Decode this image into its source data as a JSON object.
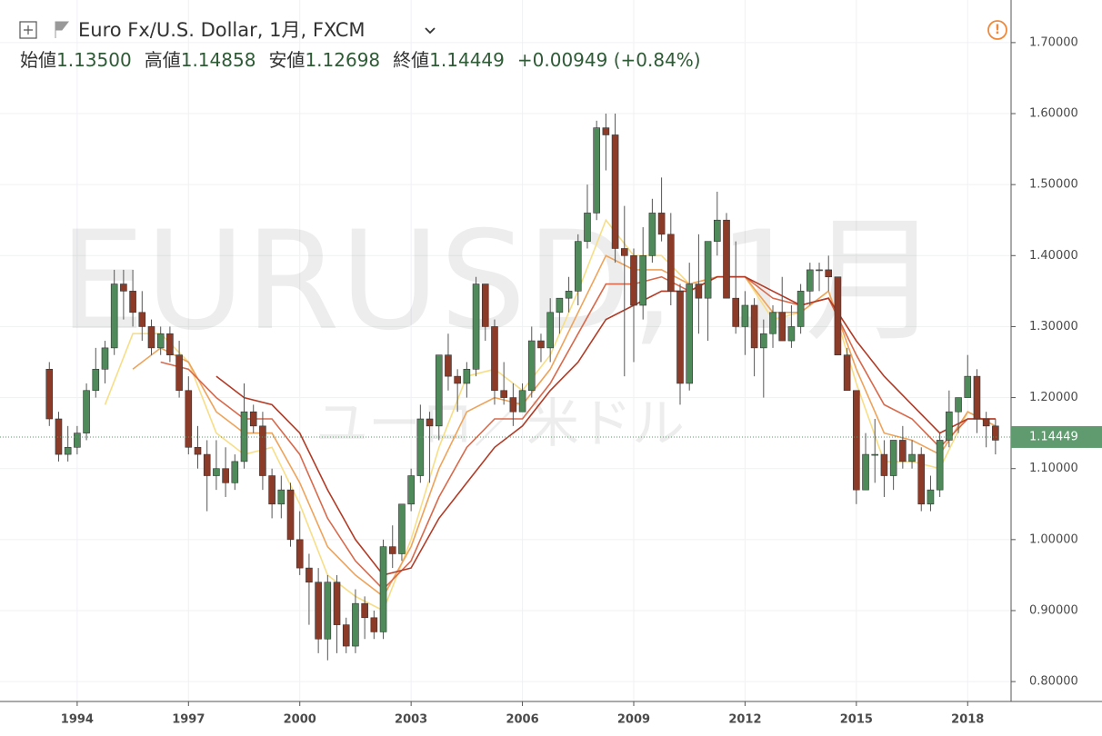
{
  "chart_data": {
    "type": "candlestick",
    "title": "Euro Fx/U.S. Dollar, 1月, FXCM",
    "watermark": "EURUSD, 1月",
    "watermark_sub": "ユーロ／米ドル",
    "ohlc_summary": [
      {
        "label": "始値",
        "value": "1.13500"
      },
      {
        "label": "高値",
        "value": "1.14858"
      },
      {
        "label": "安値",
        "value": "1.12698"
      },
      {
        "label": "終値",
        "value": "1.14449"
      }
    ],
    "change": "+0.00949 (+0.84%)",
    "last_price": {
      "value": 1.14449,
      "label": "1.14449"
    },
    "up_color": "#4f8a5b",
    "down_color": "#8c3b29",
    "x": [
      1993.25,
      1993.5,
      1993.75,
      1994,
      1994.25,
      1994.5,
      1994.75,
      1995,
      1995.25,
      1995.5,
      1995.75,
      1996,
      1996.25,
      1996.5,
      1996.75,
      1997,
      1997.25,
      1997.5,
      1997.75,
      1998,
      1998.25,
      1998.5,
      1998.75,
      1999,
      1999.25,
      1999.5,
      1999.75,
      2000,
      2000.25,
      2000.5,
      2000.75,
      2001,
      2001.25,
      2001.5,
      2001.75,
      2002,
      2002.25,
      2002.5,
      2002.75,
      2003,
      2003.25,
      2003.5,
      2003.75,
      2004,
      2004.25,
      2004.5,
      2004.75,
      2005,
      2005.25,
      2005.5,
      2005.75,
      2006,
      2006.25,
      2006.5,
      2006.75,
      2007,
      2007.25,
      2007.5,
      2007.75,
      2008,
      2008.25,
      2008.5,
      2008.75,
      2009,
      2009.25,
      2009.5,
      2009.75,
      2010,
      2010.25,
      2010.5,
      2010.75,
      2011,
      2011.25,
      2011.5,
      2011.75,
      2012,
      2012.25,
      2012.5,
      2012.75,
      2013,
      2013.25,
      2013.5,
      2013.75,
      2014,
      2014.25,
      2014.5,
      2014.75,
      2015,
      2015.25,
      2015.5,
      2015.75,
      2016,
      2016.25,
      2016.5,
      2016.75,
      2017,
      2017.25,
      2017.5,
      2017.75,
      2018,
      2018.25,
      2018.5,
      2018.75
    ],
    "open": [
      1.24,
      1.17,
      1.12,
      1.13,
      1.15,
      1.21,
      1.24,
      1.27,
      1.36,
      1.35,
      1.32,
      1.3,
      1.27,
      1.29,
      1.26,
      1.21,
      1.13,
      1.12,
      1.09,
      1.1,
      1.08,
      1.11,
      1.18,
      1.16,
      1.09,
      1.05,
      1.07,
      1.0,
      0.96,
      0.94,
      0.86,
      0.94,
      0.88,
      0.85,
      0.91,
      0.89,
      0.87,
      0.99,
      0.98,
      1.05,
      1.09,
      1.17,
      1.16,
      1.26,
      1.23,
      1.22,
      1.24,
      1.36,
      1.3,
      1.21,
      1.2,
      1.18,
      1.21,
      1.28,
      1.27,
      1.32,
      1.34,
      1.35,
      1.42,
      1.46,
      1.58,
      1.57,
      1.41,
      1.4,
      1.33,
      1.4,
      1.46,
      1.43,
      1.35,
      1.22,
      1.36,
      1.34,
      1.42,
      1.45,
      1.34,
      1.3,
      1.33,
      1.27,
      1.29,
      1.32,
      1.28,
      1.3,
      1.35,
      1.38,
      1.38,
      1.37,
      1.26,
      1.21,
      1.07,
      1.12,
      1.12,
      1.09,
      1.14,
      1.11,
      1.12,
      1.05,
      1.07,
      1.14,
      1.18,
      1.2,
      1.23,
      1.17,
      1.16
    ],
    "high": [
      1.25,
      1.18,
      1.16,
      1.16,
      1.22,
      1.27,
      1.28,
      1.38,
      1.38,
      1.38,
      1.35,
      1.31,
      1.3,
      1.3,
      1.28,
      1.23,
      1.16,
      1.14,
      1.14,
      1.13,
      1.12,
      1.22,
      1.19,
      1.18,
      1.1,
      1.09,
      1.08,
      1.04,
      0.98,
      0.96,
      0.95,
      0.95,
      0.89,
      0.93,
      0.92,
      0.9,
      1.0,
      1.02,
      1.05,
      1.1,
      1.19,
      1.18,
      1.26,
      1.29,
      1.24,
      1.25,
      1.37,
      1.36,
      1.31,
      1.25,
      1.22,
      1.22,
      1.3,
      1.29,
      1.34,
      1.34,
      1.37,
      1.43,
      1.5,
      1.59,
      1.6,
      1.6,
      1.47,
      1.41,
      1.44,
      1.48,
      1.51,
      1.46,
      1.36,
      1.39,
      1.43,
      1.42,
      1.49,
      1.46,
      1.42,
      1.35,
      1.34,
      1.31,
      1.33,
      1.37,
      1.33,
      1.36,
      1.39,
      1.39,
      1.4,
      1.37,
      1.27,
      1.21,
      1.15,
      1.17,
      1.14,
      1.14,
      1.16,
      1.14,
      1.13,
      1.09,
      1.15,
      1.21,
      1.2,
      1.26,
      1.24,
      1.18,
      1.17
    ],
    "low": [
      1.16,
      1.11,
      1.11,
      1.12,
      1.14,
      1.2,
      1.22,
      1.26,
      1.31,
      1.3,
      1.28,
      1.26,
      1.26,
      1.25,
      1.2,
      1.12,
      1.1,
      1.04,
      1.07,
      1.06,
      1.07,
      1.1,
      1.15,
      1.07,
      1.03,
      1.03,
      0.99,
      0.95,
      0.88,
      0.84,
      0.83,
      0.84,
      0.84,
      0.84,
      0.86,
      0.86,
      0.86,
      0.96,
      0.97,
      1.04,
      1.08,
      1.08,
      1.14,
      1.21,
      1.18,
      1.2,
      1.23,
      1.28,
      1.19,
      1.19,
      1.16,
      1.18,
      1.2,
      1.25,
      1.25,
      1.29,
      1.32,
      1.33,
      1.41,
      1.45,
      1.52,
      1.39,
      1.23,
      1.25,
      1.31,
      1.39,
      1.42,
      1.33,
      1.19,
      1.21,
      1.29,
      1.28,
      1.4,
      1.34,
      1.29,
      1.26,
      1.23,
      1.2,
      1.27,
      1.28,
      1.27,
      1.29,
      1.33,
      1.35,
      1.35,
      1.26,
      1.21,
      1.05,
      1.07,
      1.08,
      1.06,
      1.07,
      1.1,
      1.1,
      1.04,
      1.04,
      1.06,
      1.13,
      1.15,
      1.2,
      1.15,
      1.13,
      1.12
    ],
    "close": [
      1.17,
      1.12,
      1.13,
      1.15,
      1.21,
      1.24,
      1.27,
      1.36,
      1.35,
      1.32,
      1.3,
      1.27,
      1.29,
      1.26,
      1.21,
      1.13,
      1.12,
      1.09,
      1.1,
      1.08,
      1.11,
      1.18,
      1.16,
      1.09,
      1.05,
      1.07,
      1.0,
      0.96,
      0.94,
      0.86,
      0.94,
      0.88,
      0.85,
      0.91,
      0.89,
      0.87,
      0.99,
      0.98,
      1.05,
      1.09,
      1.17,
      1.16,
      1.26,
      1.23,
      1.22,
      1.24,
      1.36,
      1.3,
      1.21,
      1.2,
      1.18,
      1.21,
      1.28,
      1.27,
      1.32,
      1.34,
      1.35,
      1.42,
      1.46,
      1.58,
      1.57,
      1.41,
      1.4,
      1.33,
      1.4,
      1.46,
      1.43,
      1.35,
      1.22,
      1.36,
      1.34,
      1.42,
      1.45,
      1.34,
      1.3,
      1.33,
      1.27,
      1.29,
      1.32,
      1.28,
      1.3,
      1.35,
      1.38,
      1.38,
      1.37,
      1.26,
      1.21,
      1.07,
      1.12,
      1.12,
      1.09,
      1.14,
      1.11,
      1.12,
      1.05,
      1.07,
      1.14,
      1.18,
      1.2,
      1.23,
      1.17,
      1.16,
      1.14
    ],
    "ma_x": [
      1994.75,
      1995.5,
      1996.25,
      1997,
      1997.75,
      1998.5,
      1999.25,
      2000,
      2000.75,
      2001.5,
      2002.25,
      2003,
      2003.75,
      2004.5,
      2005.25,
      2006,
      2006.75,
      2007.5,
      2008.25,
      2009,
      2009.75,
      2010.5,
      2011.25,
      2012,
      2012.75,
      2013.5,
      2014.25,
      2015,
      2015.75,
      2016.5,
      2017.25,
      2018,
      2018.75
    ],
    "ma_lines": [
      {
        "color": "#f7de86",
        "values": [
          1.19,
          1.29,
          1.29,
          1.25,
          1.15,
          1.12,
          1.13,
          1.05,
          0.95,
          0.92,
          0.9,
          1.0,
          1.13,
          1.23,
          1.24,
          1.21,
          1.26,
          1.35,
          1.45,
          1.4,
          1.4,
          1.36,
          1.37,
          1.37,
          1.31,
          1.32,
          1.35,
          1.22,
          1.11,
          1.11,
          1.1,
          1.18,
          1.16
        ]
      },
      {
        "color": "#efa35a",
        "values": [
          null,
          1.24,
          1.27,
          1.25,
          1.18,
          1.15,
          1.15,
          1.08,
          0.99,
          0.95,
          0.92,
          0.99,
          1.1,
          1.18,
          1.2,
          1.19,
          1.24,
          1.32,
          1.4,
          1.38,
          1.38,
          1.36,
          1.37,
          1.37,
          1.32,
          1.32,
          1.35,
          1.24,
          1.15,
          1.14,
          1.12,
          1.18,
          1.16
        ]
      },
      {
        "color": "#d8694b",
        "values": [
          null,
          null,
          1.25,
          1.24,
          1.2,
          1.17,
          1.17,
          1.12,
          1.03,
          0.97,
          0.93,
          0.97,
          1.06,
          1.13,
          1.17,
          1.17,
          1.22,
          1.29,
          1.36,
          1.36,
          1.37,
          1.35,
          1.37,
          1.37,
          1.34,
          1.33,
          1.34,
          1.26,
          1.19,
          1.17,
          1.13,
          1.17,
          1.17
        ]
      },
      {
        "color": "#b23b26",
        "values": [
          null,
          null,
          null,
          null,
          1.23,
          1.2,
          1.19,
          1.15,
          1.07,
          1.0,
          0.95,
          0.96,
          1.03,
          1.08,
          1.13,
          1.16,
          1.21,
          1.25,
          1.31,
          1.33,
          1.35,
          1.35,
          1.37,
          1.37,
          1.35,
          1.33,
          1.34,
          1.28,
          1.23,
          1.19,
          1.15,
          1.17,
          1.17
        ]
      }
    ],
    "xlim": [
      1991.92,
      2019.17
    ],
    "xticks": [
      1994,
      1997,
      2000,
      2003,
      2006,
      2009,
      2012,
      2015,
      2018
    ],
    "ylim": [
      0.772,
      1.76
    ],
    "yticks": [
      {
        "value": 0.8,
        "label": "0.80000"
      },
      {
        "value": 0.9,
        "label": "0.90000"
      },
      {
        "value": 1.0,
        "label": "1.00000"
      },
      {
        "value": 1.1,
        "label": "1.10000"
      },
      {
        "value": 1.2,
        "label": "1.20000"
      },
      {
        "value": 1.3,
        "label": "1.30000"
      },
      {
        "value": 1.4,
        "label": "1.40000"
      },
      {
        "value": 1.5,
        "label": "1.50000"
      },
      {
        "value": 1.6,
        "label": "1.60000"
      },
      {
        "value": 1.7,
        "label": "1.70000"
      }
    ],
    "grid": true
  }
}
